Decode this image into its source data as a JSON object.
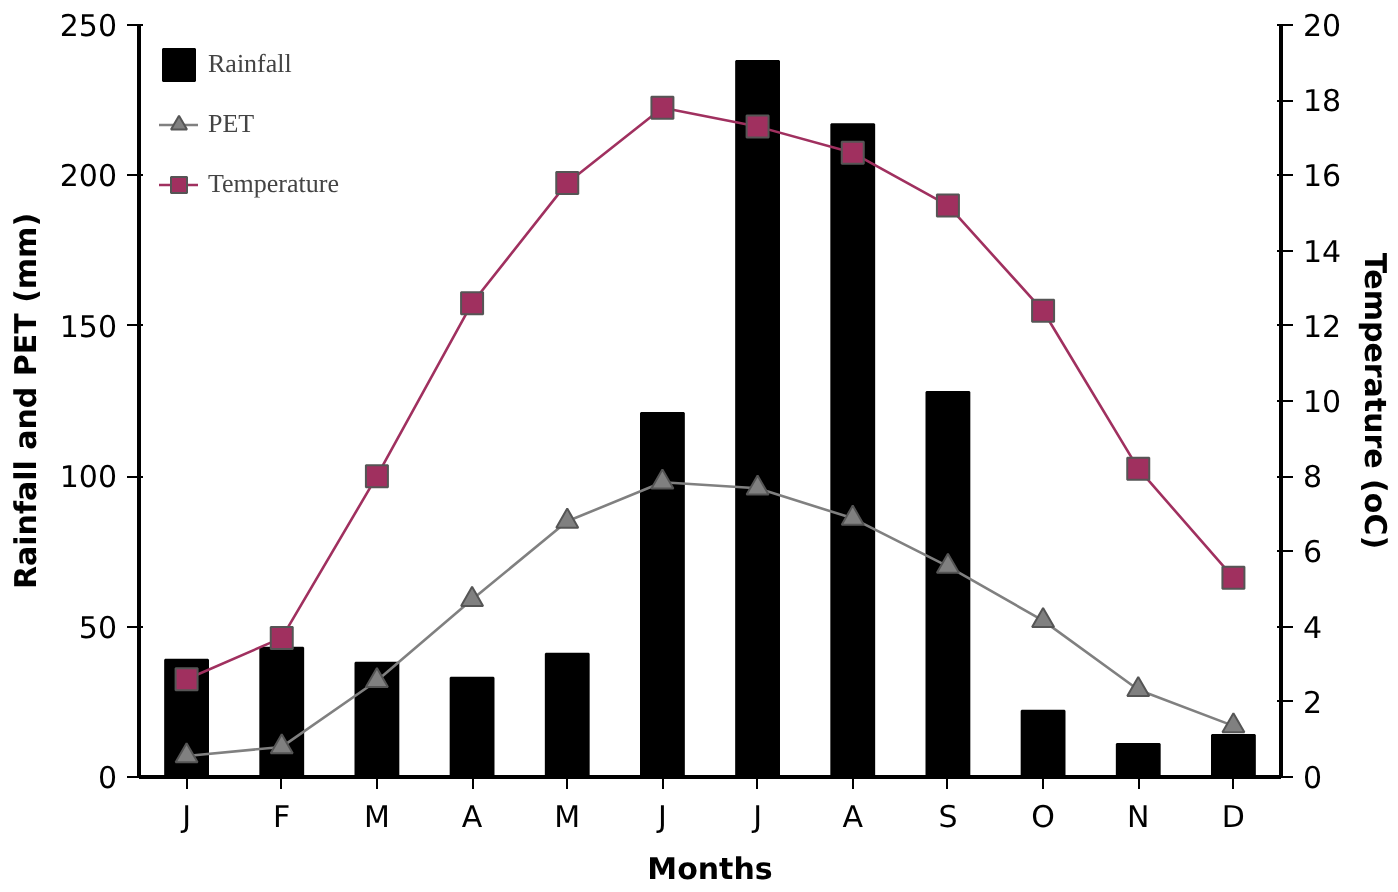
{
  "chart_data": {
    "type": "bar",
    "xlabel": "Months",
    "ylabel": "Rainfall and PET (mm)",
    "y2label": "Temperature (oC)",
    "categories": [
      "J",
      "F",
      "M",
      "A",
      "M",
      "J",
      "J",
      "A",
      "S",
      "O",
      "N",
      "D"
    ],
    "series": [
      {
        "name": "Rainfall",
        "color": "#000000",
        "values": [
          39,
          43,
          38,
          33,
          41,
          121,
          238,
          217,
          128,
          22,
          11,
          14
        ]
      },
      {
        "name": "PET",
        "type": "line",
        "color": "#808080",
        "marker": "triangle",
        "values": [
          7,
          10,
          32,
          59,
          85,
          98,
          96,
          86,
          70,
          52,
          29,
          17
        ]
      },
      {
        "name": "Temperature",
        "type": "line",
        "color": "#a0305f",
        "marker": "square",
        "axis": "y2",
        "values": [
          2.6,
          3.7,
          8.0,
          12.6,
          15.8,
          17.8,
          17.3,
          16.6,
          15.2,
          12.4,
          8.2,
          5.3
        ]
      }
    ],
    "ylim": [
      0,
      250
    ],
    "yticks": [
      0,
      50,
      100,
      150,
      200,
      250
    ],
    "y2lim": [
      0,
      20
    ],
    "y2ticks": [
      0,
      2,
      4,
      6,
      8,
      10,
      12,
      14,
      16,
      18,
      20
    ],
    "grid": false,
    "legend": "top left"
  }
}
